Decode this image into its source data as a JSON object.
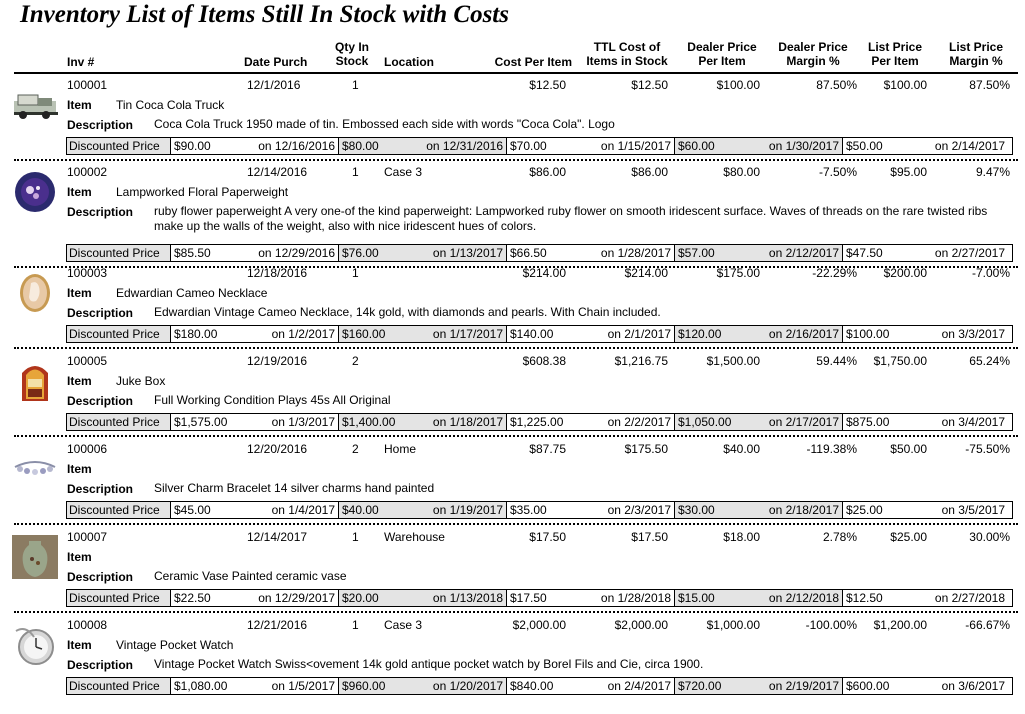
{
  "title": "Inventory List of Items Still In Stock with Costs",
  "headers": {
    "inv": "Inv #",
    "date": "Date Purch",
    "qty_1": "Qty In",
    "qty_2": "Stock",
    "location": "Location",
    "cost": "Cost Per Item",
    "ttl_1": "TTL Cost of",
    "ttl_2": "Items in Stock",
    "dealer_1": "Dealer Price",
    "dealer_2": "Per Item",
    "dmargin_1": "Dealer Price",
    "dmargin_2": "Margin %",
    "list_1": "List Price",
    "list_2": "Per Item",
    "lmargin_1": "List Price",
    "lmargin_2": "Margin %"
  },
  "labels": {
    "item": "Item",
    "description": "Description",
    "discounted": "Discounted Price",
    "on": "on"
  },
  "records": [
    {
      "thumb_icon": "truck-icon",
      "inv": "100001",
      "date": "12/1/2016",
      "qty": "1",
      "location": "",
      "cost": "$12.50",
      "ttl": "$12.50",
      "dealer": "$100.00",
      "dmargin": "87.50%",
      "list": "$100.00",
      "lmargin": "87.50%",
      "item": "Tin Coca Cola Truck",
      "description": "Coca Cola Truck 1950 made of tin.  Embossed each side with words \"Coca Cola\". Logo",
      "discounts": [
        {
          "price": "$90.00",
          "date": "12/16/2016"
        },
        {
          "price": "$80.00",
          "date": "12/31/2016"
        },
        {
          "price": "$70.00",
          "date": "1/15/2017"
        },
        {
          "price": "$60.00",
          "date": "1/30/2017"
        },
        {
          "price": "$50.00",
          "date": "2/14/2017"
        }
      ]
    },
    {
      "thumb_icon": "paperweight-icon",
      "inv": "100002",
      "date": "12/14/2016",
      "qty": "1",
      "location": "Case 3",
      "cost": "$86.00",
      "ttl": "$86.00",
      "dealer": "$80.00",
      "dmargin": "-7.50%",
      "list": "$95.00",
      "lmargin": "9.47%",
      "item": "Lampworked Floral Paperweight",
      "description": "ruby flower paperweight A very one-of the kind paperweight: Lampworked ruby flower on smooth iridescent surface.  Waves of threads on the rare twisted ribs make up the walls of the weight, also with nice iridescent hues of colors.",
      "discounts": [
        {
          "price": "$85.50",
          "date": "12/29/2016"
        },
        {
          "price": "$76.00",
          "date": "1/13/2017"
        },
        {
          "price": "$66.50",
          "date": "1/28/2017"
        },
        {
          "price": "$57.00",
          "date": "2/12/2017"
        },
        {
          "price": "$47.50",
          "date": "2/27/2017"
        }
      ]
    },
    {
      "thumb_icon": "cameo-icon",
      "inv": "100003",
      "date": "12/18/2016",
      "qty": "1",
      "location": "",
      "cost": "$214.00",
      "ttl": "$214.00",
      "dealer": "$175.00",
      "dmargin": "-22.29%",
      "list": "$200.00",
      "lmargin": "-7.00%",
      "item": "Edwardian Cameo Necklace",
      "description": "Edwardian Vintage Cameo Necklace, 14k gold, with diamonds and pearls. With Chain included.",
      "discounts": [
        {
          "price": "$180.00",
          "date": "1/2/2017"
        },
        {
          "price": "$160.00",
          "date": "1/17/2017"
        },
        {
          "price": "$140.00",
          "date": "2/1/2017"
        },
        {
          "price": "$120.00",
          "date": "2/16/2017"
        },
        {
          "price": "$100.00",
          "date": "3/3/2017"
        }
      ]
    },
    {
      "thumb_icon": "jukebox-icon",
      "inv": "100005",
      "date": "12/19/2016",
      "qty": "2",
      "location": "",
      "cost": "$608.38",
      "ttl": "$1,216.75",
      "dealer": "$1,500.00",
      "dmargin": "59.44%",
      "list": "$1,750.00",
      "lmargin": "65.24%",
      "item": "Juke Box",
      "description": "Full Working Condition Plays 45s All Original",
      "discounts": [
        {
          "price": "$1,575.00",
          "date": "1/3/2017"
        },
        {
          "price": "$1,400.00",
          "date": "1/18/2017"
        },
        {
          "price": "$1,225.00",
          "date": "2/2/2017"
        },
        {
          "price": "$1,050.00",
          "date": "2/17/2017"
        },
        {
          "price": "$875.00",
          "date": "3/4/2017"
        }
      ]
    },
    {
      "thumb_icon": "bracelet-icon",
      "inv": "100006",
      "date": "12/20/2016",
      "qty": "2",
      "location": "Home",
      "cost": "$87.75",
      "ttl": "$175.50",
      "dealer": "$40.00",
      "dmargin": "-119.38%",
      "list": "$50.00",
      "lmargin": "-75.50%",
      "item": "",
      "description": "Silver Charm Bracelet 14 silver charms hand painted",
      "discounts": [
        {
          "price": "$45.00",
          "date": "1/4/2017"
        },
        {
          "price": "$40.00",
          "date": "1/19/2017"
        },
        {
          "price": "$35.00",
          "date": "2/3/2017"
        },
        {
          "price": "$30.00",
          "date": "2/18/2017"
        },
        {
          "price": "$25.00",
          "date": "3/5/2017"
        }
      ]
    },
    {
      "thumb_icon": "vase-icon",
      "inv": "100007",
      "date": "12/14/2017",
      "qty": "1",
      "location": "Warehouse",
      "cost": "$17.50",
      "ttl": "$17.50",
      "dealer": "$18.00",
      "dmargin": "2.78%",
      "list": "$25.00",
      "lmargin": "30.00%",
      "item": "",
      "description": "Ceramic Vase Painted ceramic vase",
      "discounts": [
        {
          "price": "$22.50",
          "date": "12/29/2017"
        },
        {
          "price": "$20.00",
          "date": "1/13/2018"
        },
        {
          "price": "$17.50",
          "date": "1/28/2018"
        },
        {
          "price": "$15.00",
          "date": "2/12/2018"
        },
        {
          "price": "$12.50",
          "date": "2/27/2018"
        }
      ]
    },
    {
      "thumb_icon": "pocket-watch-icon",
      "inv": "100008",
      "date": "12/21/2016",
      "qty": "1",
      "location": "Case 3",
      "cost": "$2,000.00",
      "ttl": "$2,000.00",
      "dealer": "$1,000.00",
      "dmargin": "-100.00%",
      "list": "$1,200.00",
      "lmargin": "-66.67%",
      "item": "Vintage Pocket Watch",
      "description": "Vintage Pocket Watch Swiss<ovement 14k gold antique pocket watch by Borel Fils and Cie, circa 1900.",
      "discounts": [
        {
          "price": "$1,080.00",
          "date": "1/5/2017"
        },
        {
          "price": "$960.00",
          "date": "1/20/2017"
        },
        {
          "price": "$840.00",
          "date": "2/4/2017"
        },
        {
          "price": "$720.00",
          "date": "2/19/2017"
        },
        {
          "price": "$600.00",
          "date": "3/6/2017"
        }
      ]
    }
  ]
}
